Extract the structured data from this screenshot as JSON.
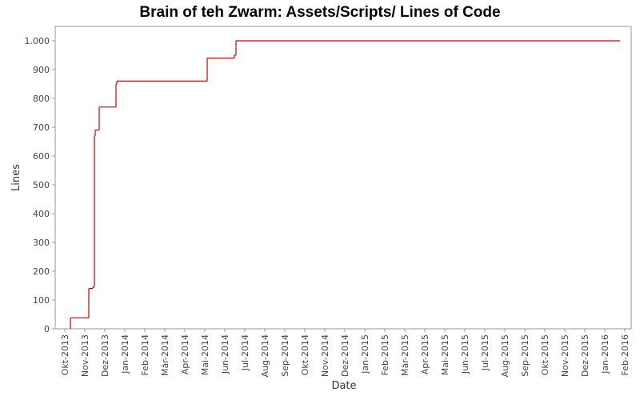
{
  "chart_data": {
    "type": "step",
    "title": "Brain of teh Zwarm: Assets/Scripts/ Lines of Code",
    "x_label": "Date",
    "y_label": "Lines",
    "series": [
      {
        "name": "Lines",
        "color": "#cc0000",
        "x": [
          0.28,
          0.28,
          1.2,
          1.4,
          1.48,
          1.52,
          1.72,
          2.56,
          2.6,
          7.12,
          8.48,
          8.56,
          27.76
        ],
        "values": [
          0,
          38,
          140,
          145,
          670,
          690,
          770,
          850,
          860,
          940,
          950,
          1000,
          1000
        ]
      }
    ],
    "xlim": [
      -0.48,
      28.32
    ],
    "ylim": [
      0,
      1050
    ],
    "xticks": [
      {
        "value": 0,
        "label": "Okt-2013"
      },
      {
        "value": 1,
        "label": "Nov-2013"
      },
      {
        "value": 2,
        "label": "Dez-2013"
      },
      {
        "value": 3,
        "label": "Jan-2014"
      },
      {
        "value": 4,
        "label": "Feb-2014"
      },
      {
        "value": 5,
        "label": "Mär-2014"
      },
      {
        "value": 6,
        "label": "Apr-2014"
      },
      {
        "value": 7,
        "label": "Mai-2014"
      },
      {
        "value": 8,
        "label": "Jun-2014"
      },
      {
        "value": 9,
        "label": "Jul-2014"
      },
      {
        "value": 10,
        "label": "Aug-2014"
      },
      {
        "value": 11,
        "label": "Sep-2014"
      },
      {
        "value": 12,
        "label": "Okt-2014"
      },
      {
        "value": 13,
        "label": "Nov-2014"
      },
      {
        "value": 14,
        "label": "Dez-2014"
      },
      {
        "value": 15,
        "label": "Jan-2015"
      },
      {
        "value": 16,
        "label": "Feb-2015"
      },
      {
        "value": 17,
        "label": "Mär-2015"
      },
      {
        "value": 18,
        "label": "Apr-2015"
      },
      {
        "value": 19,
        "label": "Mai-2015"
      },
      {
        "value": 20,
        "label": "Jun-2015"
      },
      {
        "value": 21,
        "label": "Jul-2015"
      },
      {
        "value": 22,
        "label": "Aug-2015"
      },
      {
        "value": 23,
        "label": "Sep-2015"
      },
      {
        "value": 24,
        "label": "Okt-2015"
      },
      {
        "value": 25,
        "label": "Nov-2015"
      },
      {
        "value": 26,
        "label": "Dez-2015"
      },
      {
        "value": 27,
        "label": "Jan-2016"
      },
      {
        "value": 28,
        "label": "Feb-2016"
      }
    ],
    "yticks": [
      0,
      100,
      200,
      300,
      400,
      500,
      600,
      700,
      800,
      900,
      {
        "value": 1000,
        "label": "1.000"
      }
    ]
  }
}
